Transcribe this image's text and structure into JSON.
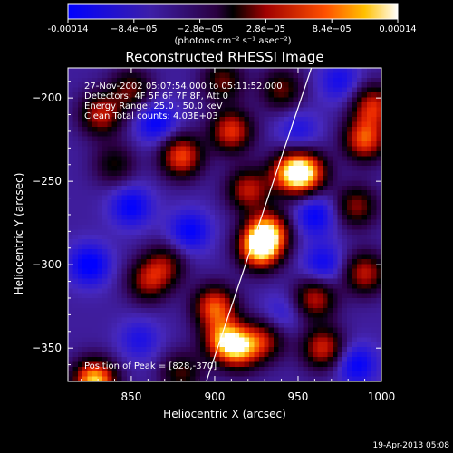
{
  "colorbar": {
    "ticks": [
      "-0.00014",
      "−8.4e−05",
      "−2.8e−05",
      "2.8e−05",
      "8.4e−05",
      "0.00014"
    ],
    "tick_values": [
      -0.00014,
      -8.4e-05,
      -2.8e-05,
      2.8e-05,
      8.4e-05,
      0.00014
    ],
    "range": [
      -0.00014,
      0.00014
    ],
    "unit_label": "(photons cm⁻² s⁻¹ asec⁻²)"
  },
  "title": "Reconstructed RHESSI Image",
  "info": {
    "line1": "27-Nov-2002 05:07:54.000 to 05:11:52.000",
    "line2": "Detectors: 4F 5F 6F 7F 8F, Att 0",
    "line3": "Energy Range: 25.0 - 50.0 keV",
    "line4": "Clean    Total counts: 4.03E+03"
  },
  "peak_text": "Position of Peak = [828,-370]",
  "footer_date": "19-Apr-2013 05:08",
  "chart_data": {
    "type": "heatmap",
    "title": "Reconstructed RHESSI Image",
    "xlabel": "Heliocentric X (arcsec)",
    "ylabel": "Heliocentric Y (arcsec)",
    "xlim": [
      812,
      1000
    ],
    "ylim": [
      -370,
      -182
    ],
    "x_ticks": [
      850,
      900,
      950,
      1000
    ],
    "y_ticks": [
      -200,
      -250,
      -300,
      -350
    ],
    "limb_line": [
      [
        895,
        -370
      ],
      [
        958,
        -182
      ]
    ],
    "peak_position": [
      828,
      -370
    ],
    "blobs": [
      {
        "x": 927,
        "y": -290,
        "intensity": 1.0
      },
      {
        "x": 932,
        "y": -280,
        "intensity": 0.8
      },
      {
        "x": 945,
        "y": -245,
        "intensity": 0.75
      },
      {
        "x": 955,
        "y": -245,
        "intensity": 0.8
      },
      {
        "x": 990,
        "y": -225,
        "intensity": 0.75
      },
      {
        "x": 995,
        "y": -205,
        "intensity": 0.65
      },
      {
        "x": 880,
        "y": -235,
        "intensity": 0.75
      },
      {
        "x": 910,
        "y": -220,
        "intensity": 0.7
      },
      {
        "x": 920,
        "y": -255,
        "intensity": 0.6
      },
      {
        "x": 900,
        "y": -325,
        "intensity": 0.75
      },
      {
        "x": 905,
        "y": -345,
        "intensity": 0.7
      },
      {
        "x": 915,
        "y": -350,
        "intensity": 0.75
      },
      {
        "x": 930,
        "y": -345,
        "intensity": 0.5
      },
      {
        "x": 960,
        "y": -320,
        "intensity": 0.6
      },
      {
        "x": 965,
        "y": -350,
        "intensity": 0.65
      },
      {
        "x": 990,
        "y": -305,
        "intensity": 0.6
      },
      {
        "x": 860,
        "y": -310,
        "intensity": 0.5
      },
      {
        "x": 870,
        "y": -300,
        "intensity": 0.45
      },
      {
        "x": 828,
        "y": -370,
        "intensity": 1.0
      },
      {
        "x": 832,
        "y": -210,
        "intensity": 0.6
      },
      {
        "x": 850,
        "y": -195,
        "intensity": 0.45
      },
      {
        "x": 905,
        "y": -190,
        "intensity": 0.45
      },
      {
        "x": 840,
        "y": -240,
        "intensity": 0.35
      },
      {
        "x": 985,
        "y": -265,
        "intensity": 0.5
      },
      {
        "x": 940,
        "y": -195,
        "intensity": 0.45
      },
      {
        "x": 880,
        "y": -365,
        "intensity": 0.4
      },
      {
        "x": 865,
        "y": -215,
        "intensity": -0.9
      },
      {
        "x": 825,
        "y": -300,
        "intensity": -1.0
      },
      {
        "x": 850,
        "y": -265,
        "intensity": -0.9
      },
      {
        "x": 885,
        "y": -280,
        "intensity": -0.9
      },
      {
        "x": 960,
        "y": -270,
        "intensity": -0.9
      },
      {
        "x": 965,
        "y": -300,
        "intensity": -0.8
      },
      {
        "x": 985,
        "y": -360,
        "intensity": -0.9
      },
      {
        "x": 950,
        "y": -220,
        "intensity": -0.6
      },
      {
        "x": 975,
        "y": -190,
        "intensity": -0.7
      },
      {
        "x": 855,
        "y": -345,
        "intensity": -0.6
      },
      {
        "x": 940,
        "y": -330,
        "intensity": -0.5
      }
    ]
  }
}
